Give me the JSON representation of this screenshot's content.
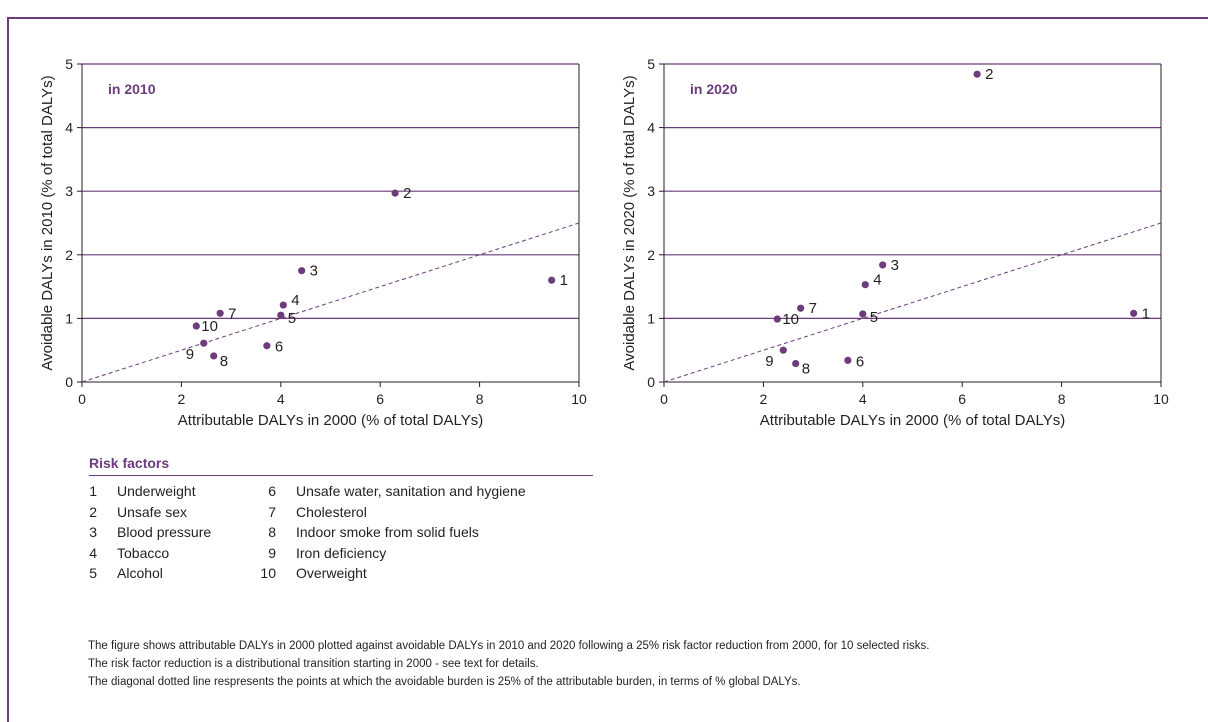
{
  "chart_data": [
    {
      "type": "scatter",
      "title": "in 2010",
      "xlabel": "Attributable DALYs in 2000  (% of total DALYs)",
      "ylabel": "Avoidable DALYs in 2010 (% of total DALYs)",
      "xlim": [
        0,
        10
      ],
      "ylim": [
        0,
        5
      ],
      "x_ticks": [
        "0",
        "2",
        "4",
        "6",
        "8",
        "10"
      ],
      "y_ticks": [
        "0",
        "1",
        "2",
        "3",
        "4",
        "5"
      ],
      "grid": "horizontal",
      "reference_line": {
        "style": "dashed",
        "from": [
          0,
          0
        ],
        "to": [
          10,
          2.5
        ]
      },
      "points": [
        {
          "label": "1",
          "x": 9.45,
          "y": 1.6
        },
        {
          "label": "2",
          "x": 6.3,
          "y": 2.97
        },
        {
          "label": "3",
          "x": 4.42,
          "y": 1.75
        },
        {
          "label": "4",
          "x": 4.05,
          "y": 1.21
        },
        {
          "label": "5",
          "x": 4.0,
          "y": 1.05
        },
        {
          "label": "6",
          "x": 3.72,
          "y": 0.57
        },
        {
          "label": "7",
          "x": 2.78,
          "y": 1.08
        },
        {
          "label": "8",
          "x": 2.65,
          "y": 0.41
        },
        {
          "label": "9",
          "x": 2.45,
          "y": 0.61
        },
        {
          "label": "10",
          "x": 2.3,
          "y": 0.88
        }
      ]
    },
    {
      "type": "scatter",
      "title": "in 2020",
      "xlabel": "Attributable DALYs in 2000 (% of total DALYs)",
      "ylabel": "Avoidable DALYs in 2020 (% of total DALYs)",
      "xlim": [
        0,
        10
      ],
      "ylim": [
        0,
        5
      ],
      "x_ticks": [
        "0",
        "2",
        "4",
        "6",
        "8",
        "10"
      ],
      "y_ticks": [
        "0",
        "1",
        "2",
        "3",
        "4",
        "5"
      ],
      "grid": "horizontal",
      "reference_line": {
        "style": "dashed",
        "from": [
          0,
          0
        ],
        "to": [
          10,
          2.5
        ]
      },
      "points": [
        {
          "label": "1",
          "x": 9.45,
          "y": 1.08
        },
        {
          "label": "2",
          "x": 6.3,
          "y": 4.84
        },
        {
          "label": "3",
          "x": 4.4,
          "y": 1.84
        },
        {
          "label": "4",
          "x": 4.05,
          "y": 1.53
        },
        {
          "label": "5",
          "x": 4.0,
          "y": 1.07
        },
        {
          "label": "6",
          "x": 3.7,
          "y": 0.34
        },
        {
          "label": "7",
          "x": 2.75,
          "y": 1.16
        },
        {
          "label": "8",
          "x": 2.65,
          "y": 0.29
        },
        {
          "label": "9",
          "x": 2.4,
          "y": 0.5
        },
        {
          "label": "10",
          "x": 2.28,
          "y": 0.99
        }
      ]
    }
  ],
  "legend": {
    "title": "Risk factors",
    "items": [
      {
        "num": "1",
        "label": "Underweight"
      },
      {
        "num": "2",
        "label": "Unsafe sex"
      },
      {
        "num": "3",
        "label": "Blood pressure"
      },
      {
        "num": "4",
        "label": "Tobacco"
      },
      {
        "num": "5",
        "label": "Alcohol"
      },
      {
        "num": "6",
        "label": "Unsafe water, sanitation and hygiene"
      },
      {
        "num": "7",
        "label": "Cholesterol"
      },
      {
        "num": "8",
        "label": "Indoor smoke from solid fuels"
      },
      {
        "num": "9",
        "label": "Iron deficiency"
      },
      {
        "num": "10",
        "label": "Overweight"
      }
    ]
  },
  "notes": [
    "The figure shows attributable DALYs in 2000 plotted against avoidable DALYs in 2010 and 2020 following a 25% risk factor reduction from 2000, for 10 selected risks.",
    "The risk factor reduction is a distributional transition starting in 2000 - see text for details.",
    "The diagonal dotted line respresents the points at which the avoidable burden is 25% of the attributable burden, in terms of % global DALYs."
  ],
  "colors": {
    "accent": "#6c3c7c",
    "text": "#231f20",
    "axis": "#231f20"
  }
}
